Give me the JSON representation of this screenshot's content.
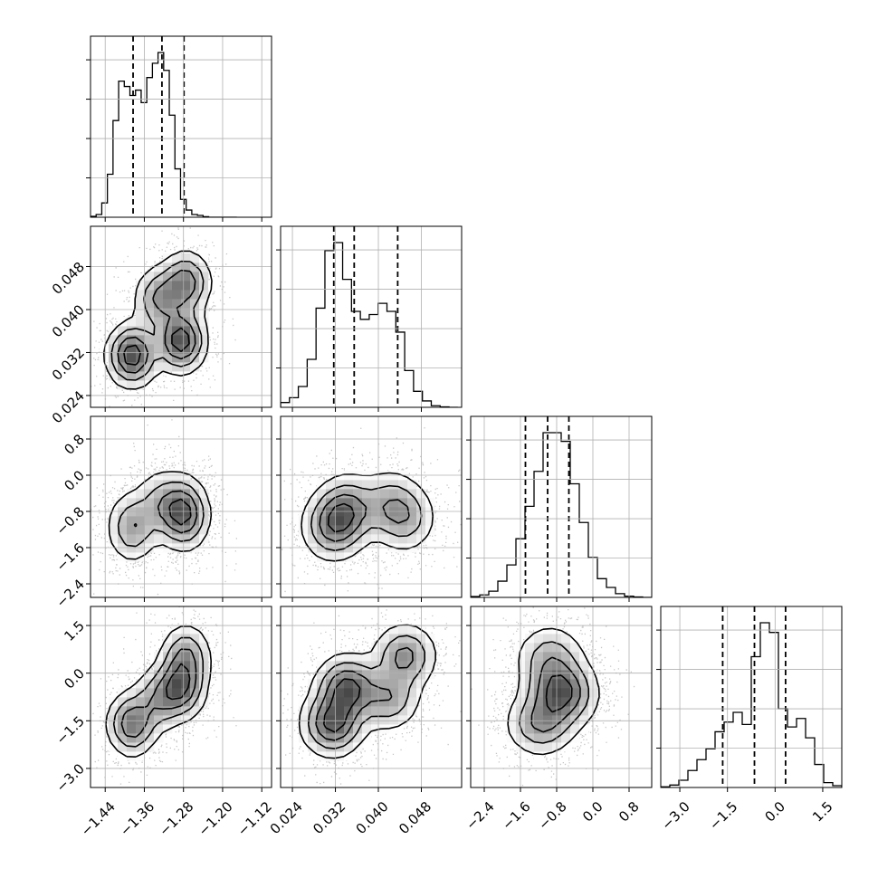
{
  "chart_data": {
    "type": "corner",
    "grid": true,
    "params": [
      {
        "range": [
          -1.47,
          -1.1
        ],
        "ticks": [
          -1.44,
          -1.36,
          -1.28,
          -1.2,
          -1.12
        ],
        "tick_labels": [
          "−1.44",
          "−1.36",
          "−1.28",
          "−1.20",
          "−1.12"
        ],
        "quantiles": [
          -1.383,
          -1.324,
          -1.279
        ]
      },
      {
        "range": [
          0.0218,
          0.0555
        ],
        "ticks": [
          0.024,
          0.032,
          0.04,
          0.048
        ],
        "tick_labels": [
          "0.024",
          "0.032",
          "0.040",
          "0.048"
        ],
        "quantiles": [
          0.0317,
          0.0355,
          0.0436
        ]
      },
      {
        "range": [
          -2.7,
          1.3
        ],
        "ticks": [
          -2.4,
          -1.6,
          -0.8,
          0.0,
          0.8
        ],
        "tick_labels": [
          "−2.4",
          "−1.6",
          "−0.8",
          "0.0",
          "0.8"
        ],
        "quantiles": [
          -1.49,
          -1.0,
          -0.53
        ]
      },
      {
        "range": [
          -3.6,
          2.1
        ],
        "ticks": [
          -3.0,
          -1.5,
          0.0,
          1.5
        ],
        "tick_labels": [
          "−3.0",
          "−1.5",
          "0.0",
          "1.5"
        ],
        "quantiles": [
          -1.65,
          -0.65,
          0.33
        ]
      }
    ],
    "histograms": [
      {
        "edges": [
          -1.47,
          -1.4585,
          -1.447,
          -1.4355,
          -1.424,
          -1.4125,
          -1.401,
          -1.3895,
          -1.378,
          -1.3665,
          -1.355,
          -1.3435,
          -1.332,
          -1.3205,
          -1.309,
          -1.2975,
          -1.286,
          -1.2745,
          -1.263,
          -1.2515,
          -1.24,
          -1.2285,
          -1.217,
          -1.2055,
          -1.194,
          -1.1825,
          -1.171
        ],
        "counts": [
          0.5,
          1.5,
          8,
          24,
          54,
          76,
          73,
          68,
          71,
          64,
          78,
          86,
          92,
          82,
          57,
          27,
          10,
          4,
          1.5,
          1,
          0.3,
          0,
          0,
          0,
          0,
          0
        ]
      },
      {
        "edges": [
          0.0218,
          0.02345,
          0.0251,
          0.02675,
          0.0284,
          0.03005,
          0.0317,
          0.03335,
          0.035,
          0.03665,
          0.0383,
          0.03995,
          0.0416,
          0.04325,
          0.0449,
          0.04655,
          0.0482,
          0.04985,
          0.0515,
          0.05315,
          0.0548
        ],
        "counts": [
          3,
          6,
          13,
          30,
          62,
          98,
          103,
          80,
          60,
          55,
          58,
          65,
          60,
          47,
          23,
          10,
          4,
          1,
          0.3,
          0
        ]
      },
      {
        "edges": [
          -2.7,
          -2.5,
          -2.3,
          -2.1,
          -1.9,
          -1.7,
          -1.5,
          -1.3,
          -1.1,
          -0.9,
          -0.7,
          -0.5,
          -0.3,
          -0.1,
          0.1,
          0.3,
          0.5,
          0.7,
          0.9,
          1.1,
          1.3
        ],
        "counts": [
          0.7,
          2,
          5,
          13,
          26,
          47,
          73,
          101,
          132,
          132,
          125,
          91,
          60,
          32,
          15,
          8,
          3,
          1,
          0.3,
          0
        ]
      },
      {
        "edges": [
          -3.6,
          -3.315,
          -3.03,
          -2.745,
          -2.46,
          -2.175,
          -1.89,
          -1.605,
          -1.32,
          -1.035,
          -0.75,
          -0.465,
          -0.18,
          0.105,
          0.39,
          0.675,
          0.96,
          1.245,
          1.53,
          1.815,
          2.1
        ],
        "counts": [
          0.5,
          2,
          6,
          14,
          23,
          32,
          46,
          54,
          62,
          52,
          108,
          136,
          128,
          65,
          50,
          57,
          41,
          19,
          4,
          1.5
        ]
      }
    ],
    "modes": [
      [
        -1.385,
        0.0315,
        -1.15,
        -1.6
      ],
      [
        -1.285,
        0.0342,
        -0.75,
        -0.45
      ],
      [
        -1.275,
        0.045,
        -0.95,
        0.55
      ],
      [
        -1.33,
        0.042,
        -0.6,
        -0.8
      ]
    ]
  }
}
